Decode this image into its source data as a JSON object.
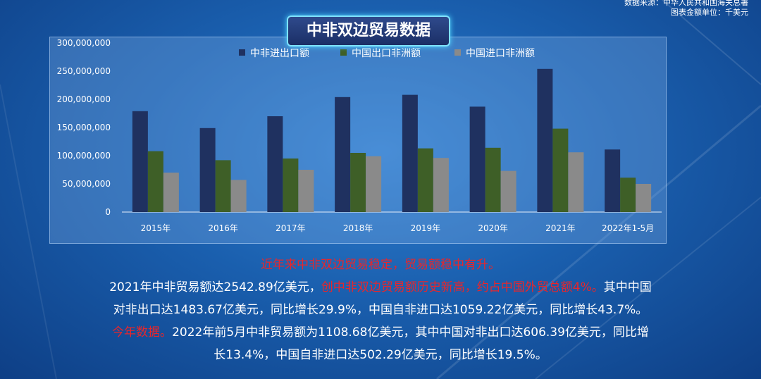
{
  "source": {
    "line1": "数据来源：中华人民共和国海关总署",
    "line2": "图表金额单位：千美元"
  },
  "title": "中非双边贸易数据",
  "colors": {
    "total": "#1f3160",
    "export": "#3e5f27",
    "import": "#8a8a8a",
    "red_text": "#e8262b"
  },
  "chart_data": {
    "type": "bar",
    "categories": [
      "2015年",
      "2016年",
      "2017年",
      "2018年",
      "2019年",
      "2020年",
      "2021年",
      "2022年1-5月"
    ],
    "series": [
      {
        "name": "中非进出口额",
        "values": [
          179000000,
          149000000,
          170000000,
          204000000,
          208000000,
          187000000,
          254000000,
          111000000
        ]
      },
      {
        "name": "中国出口非洲额",
        "values": [
          108000000,
          92000000,
          95000000,
          105000000,
          113000000,
          114000000,
          148000000,
          61000000
        ]
      },
      {
        "name": "中国进口非洲额",
        "values": [
          70000000,
          57000000,
          75000000,
          99000000,
          96000000,
          73000000,
          106000000,
          50000000
        ]
      }
    ],
    "yticks": [
      "0",
      "50,000,000",
      "100,000,000",
      "150,000,000",
      "200,000,000",
      "250,000,000",
      "300,000,000"
    ],
    "ylim": [
      0,
      300000000
    ],
    "legend": "top",
    "grid": false
  },
  "caption": {
    "line1": "近年来中非双边贸易稳定，贸易额稳中有升。",
    "line2a": "2021年中非贸易额达2542.89亿美元，",
    "line2b": "创中非双边贸易额历史新高，约占中国外贸总额4%。",
    "line2c": "其中中国",
    "line3": "对非出口达1483.67亿美元，同比增长29.9%，中国自非进口达1059.22亿美元，同比增长43.7%。",
    "line4a": "今年数据。",
    "line4b": "2022年前5月中非贸易额为1108.68亿美元，其中中国对非出口达606.39亿美元，同比增",
    "line5": "长13.4%，中国自非进口达502.29亿美元，同比增长19.5%。"
  }
}
